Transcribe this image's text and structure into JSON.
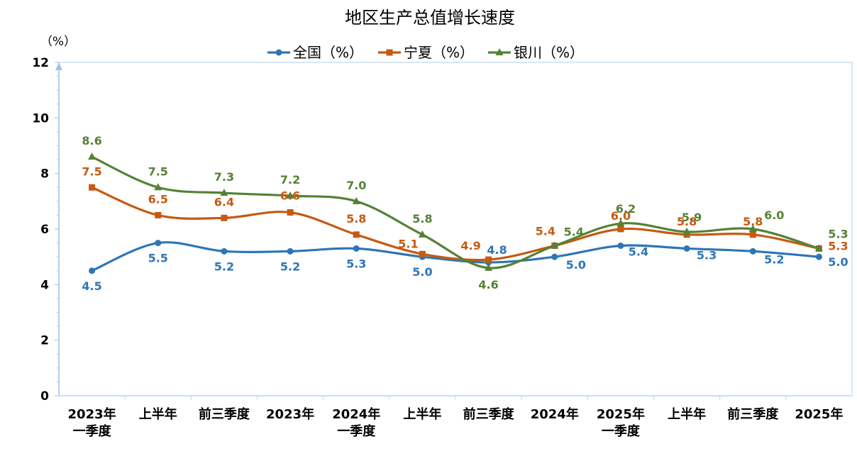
{
  "chart_data": {
    "type": "line",
    "title": "地区生产总值增长速度",
    "ylabel": "（%）",
    "ylim": [
      0,
      12
    ],
    "yticks": [
      "0",
      "2",
      "4",
      "6",
      "8",
      "10",
      "12"
    ],
    "categories": [
      [
        "2023年",
        "一季度"
      ],
      [
        "上半年"
      ],
      [
        "前三季度"
      ],
      [
        "2023年"
      ],
      [
        "2024年",
        "一季度"
      ],
      [
        "上半年"
      ],
      [
        "前三季度"
      ],
      [
        "2024年"
      ],
      [
        "2025年",
        "一季度"
      ],
      [
        "上半年"
      ],
      [
        "前三季度"
      ],
      [
        "2025年"
      ]
    ],
    "legend_position": "top",
    "grid": false,
    "series": [
      {
        "name": "全国（%）",
        "color": "#2E75B6",
        "marker": "circle",
        "values": [
          4.5,
          5.5,
          5.2,
          5.2,
          5.3,
          5.0,
          4.8,
          5.0,
          5.4,
          5.3,
          5.2,
          5.0
        ],
        "labels": [
          "4.5",
          "5.5",
          "5.2",
          "5.2",
          "5.3",
          "5.0",
          "4.8",
          "5.0",
          "5.4",
          "5.3",
          "5.2",
          "5.0"
        ]
      },
      {
        "name": "宁夏（%）",
        "color": "#C55A11",
        "marker": "square",
        "values": [
          7.5,
          6.5,
          6.4,
          6.6,
          5.8,
          5.1,
          4.9,
          5.4,
          6.0,
          5.8,
          5.8,
          5.3
        ],
        "labels": [
          "7.5",
          "6.5",
          "6.4",
          "6.6",
          "5.8",
          "5.1",
          "4.9",
          "5.4",
          "6.0",
          "5.8",
          "5.8",
          "5.3"
        ]
      },
      {
        "name": "银川（%）",
        "color": "#548235",
        "marker": "triangle",
        "values": [
          8.6,
          7.5,
          7.3,
          7.2,
          7.0,
          5.8,
          4.6,
          5.4,
          6.2,
          5.9,
          6.0,
          5.3
        ],
        "labels": [
          "8.6",
          "7.5",
          "7.3",
          "7.2",
          "7.0",
          "5.8",
          "4.6",
          "5.4",
          "6.2",
          "5.9",
          "6.0",
          "5.3"
        ]
      }
    ]
  }
}
